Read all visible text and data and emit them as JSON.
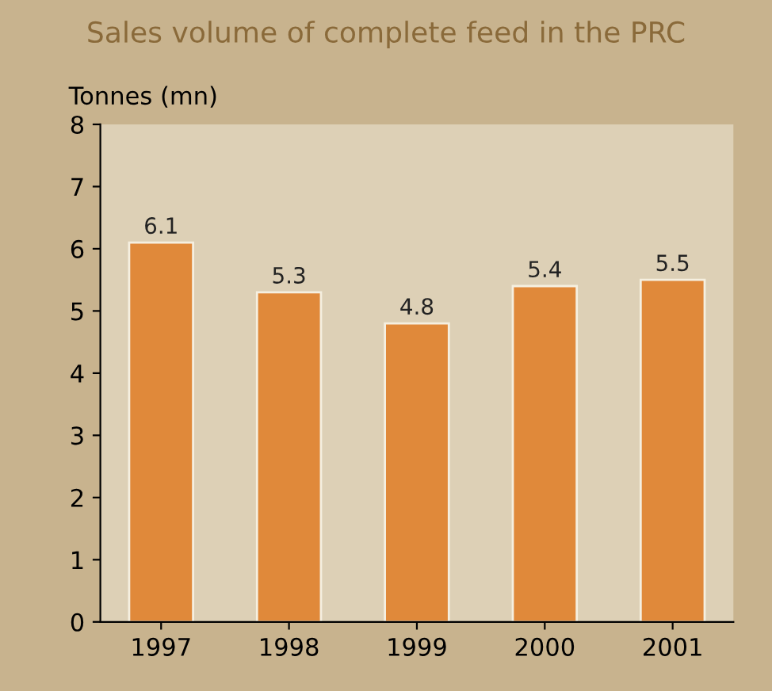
{
  "chart_data": {
    "type": "bar",
    "title": "Sales volume of complete feed in the PRC",
    "ylabel": "Tonnes (mn)",
    "categories": [
      "1997",
      "1998",
      "1999",
      "2000",
      "2001"
    ],
    "values": [
      6.1,
      5.3,
      4.8,
      5.4,
      5.5
    ],
    "color": "#e0893a",
    "ylim": [
      0,
      8
    ],
    "yticks": [
      0,
      1,
      2,
      3,
      4,
      5,
      6,
      7,
      8
    ],
    "data_labels": true,
    "grid": false
  }
}
